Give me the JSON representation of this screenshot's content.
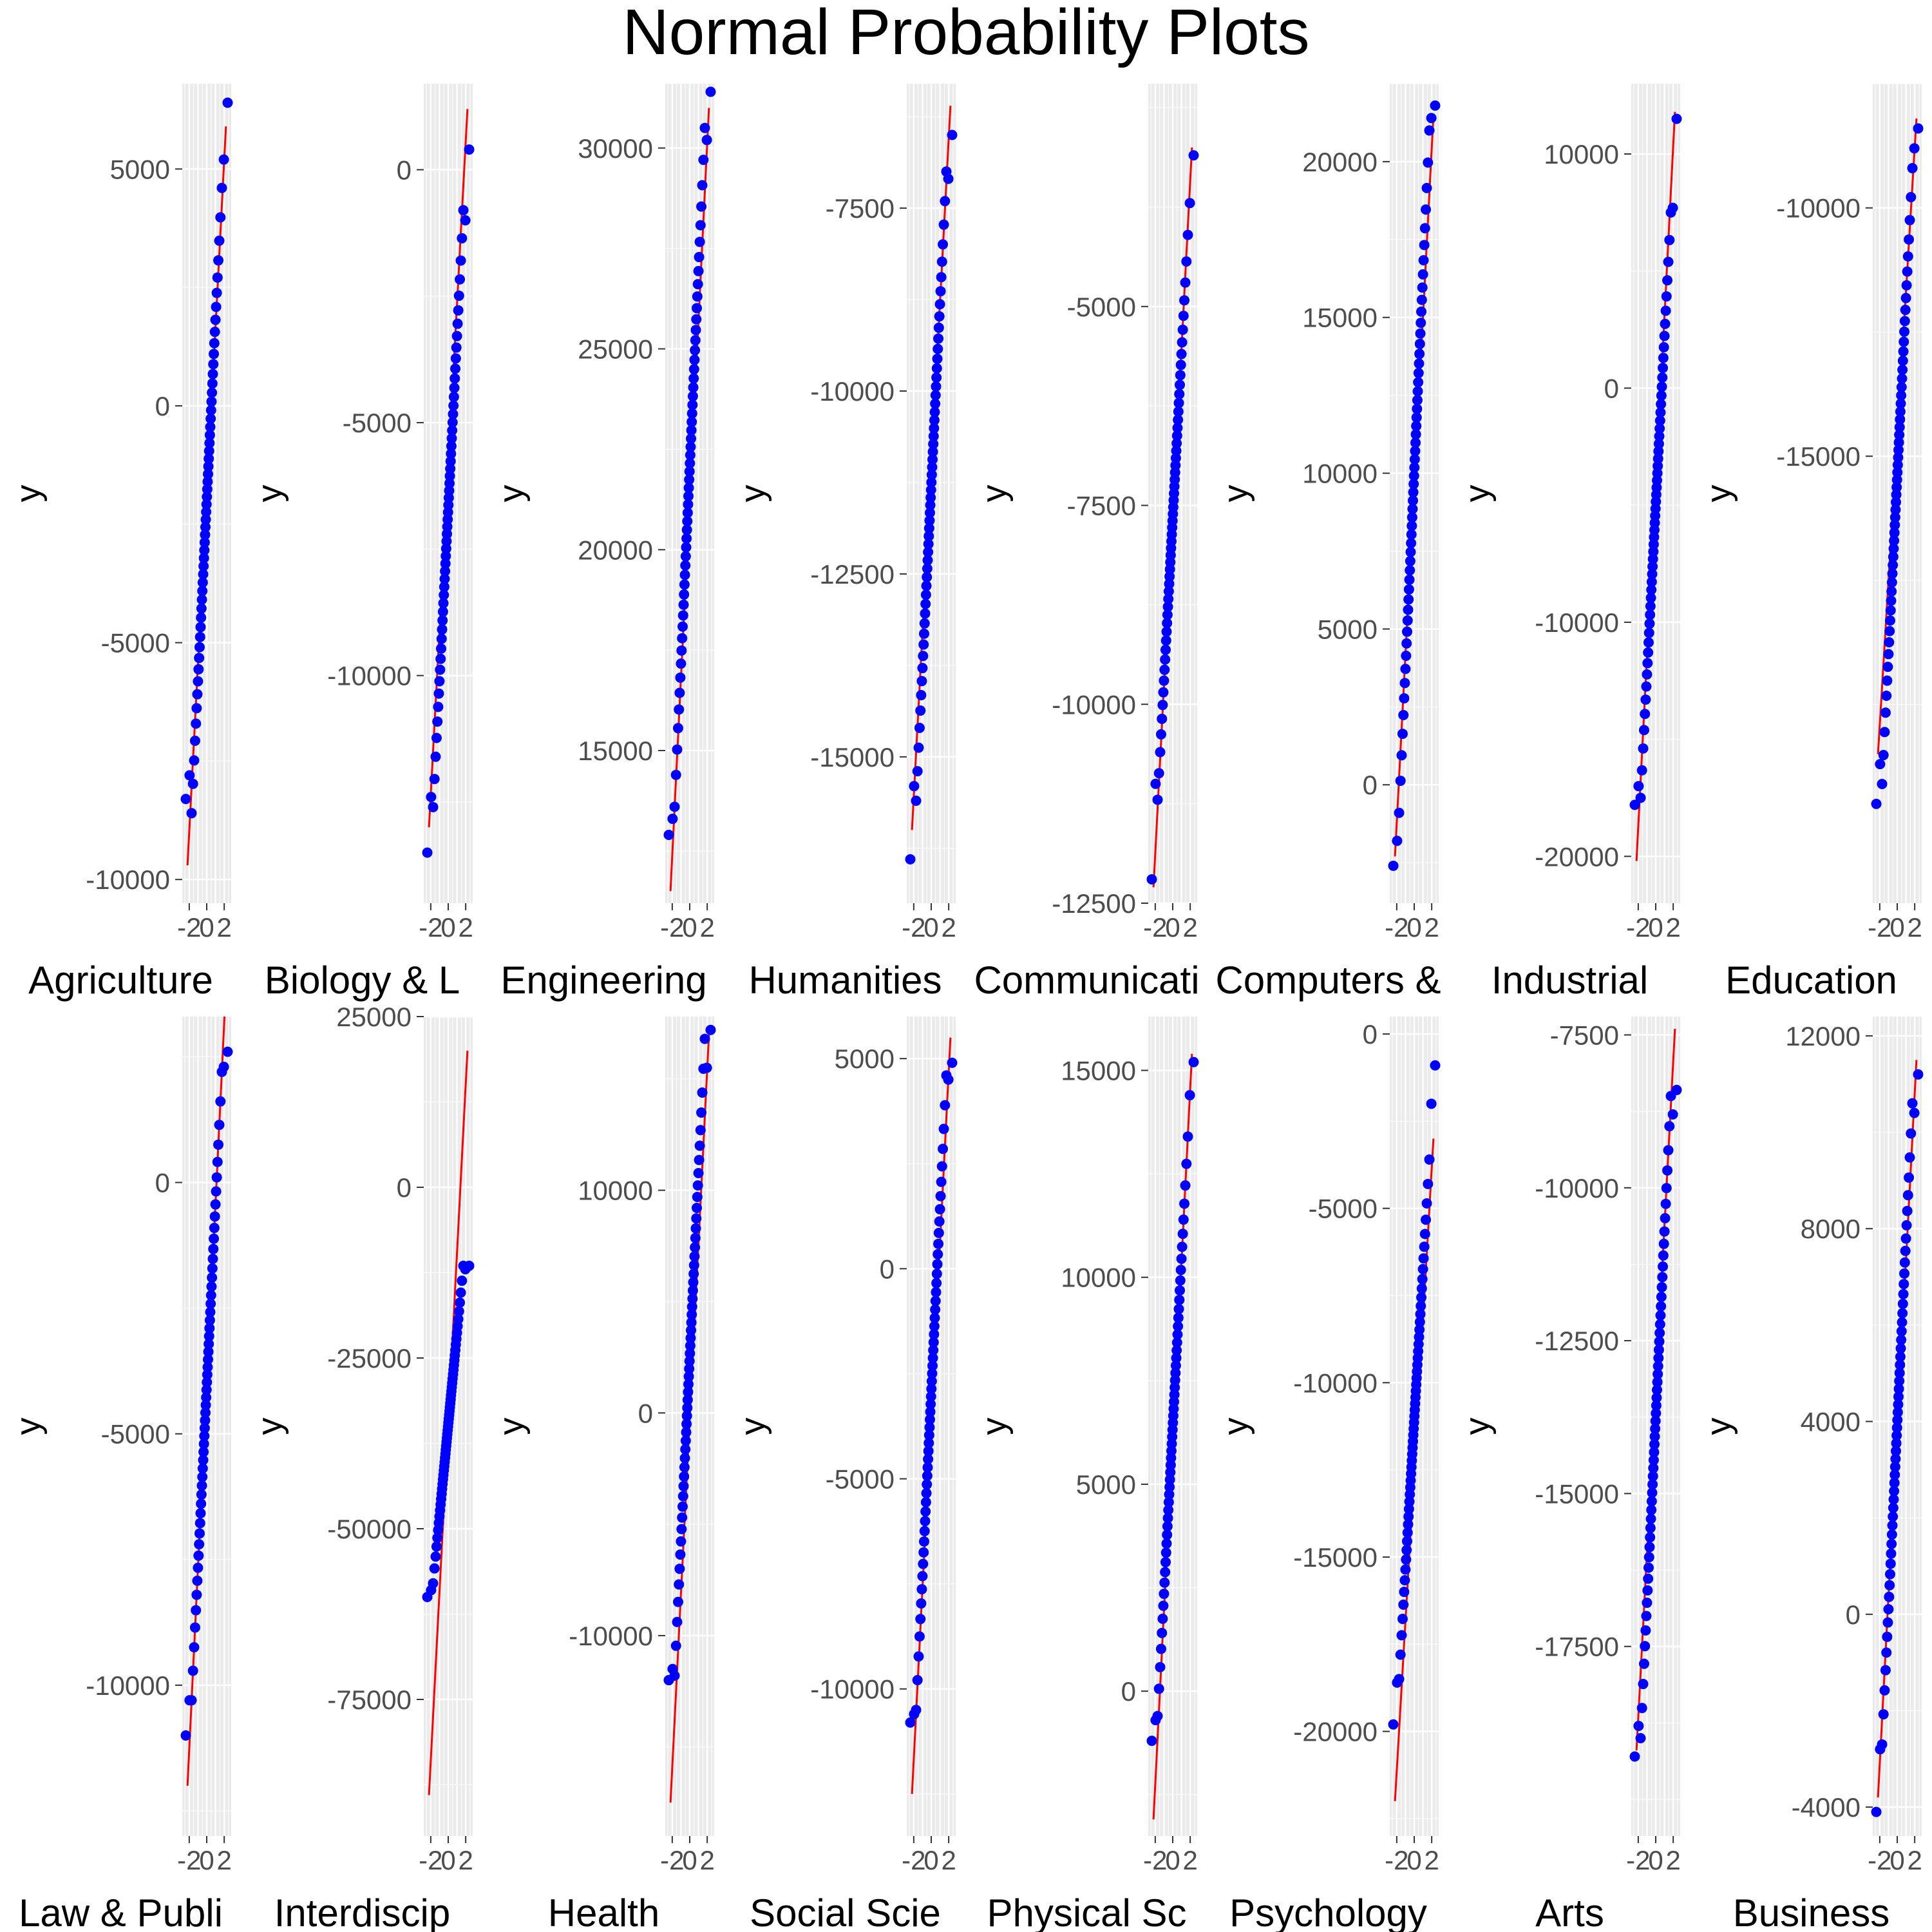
{
  "title": "Normal Probability Plots",
  "colors": {
    "points": "#0000ff",
    "line": "#ff0000",
    "panel_bg": "#ebebeb",
    "grid": "#ffffff",
    "tick": "#333333",
    "text": "#4d4d4d"
  },
  "chart_data": {
    "type": "scatter",
    "subtype": "normal-qq",
    "grid": true,
    "x_ticks": [
      "-2",
      "0",
      "2"
    ],
    "y_axis_label": "y",
    "layout": {
      "rows": 2,
      "cols": 8
    },
    "panels": [
      {
        "label": "Agriculture & Natural Resources",
        "ylim": [
          -10500,
          6800
        ],
        "yticks": [
          5000,
          0,
          -5000,
          -10000
        ],
        "y_at_zmin": -8600,
        "y_at_zmax": 4600,
        "line": [
          -9700,
          5900
        ],
        "outliers": [
          -8300,
          -7800,
          5200,
          6400
        ],
        "n": 60
      },
      {
        "label": "Biology & Life Science",
        "ylim": [
          -14500,
          1700
        ],
        "yticks": [
          0,
          -5000,
          -10000
        ],
        "y_at_zmin": -12600,
        "y_at_zmax": -800,
        "line": [
          -13000,
          1200
        ],
        "outliers": [
          -13500,
          -12400,
          -1000,
          400
        ],
        "n": 60
      },
      {
        "label": "Engineering",
        "ylim": [
          11200,
          31600
        ],
        "yticks": [
          30000,
          25000,
          20000,
          15000
        ],
        "y_at_zmin": 13600,
        "y_at_zmax": 30500,
        "line": [
          11500,
          31000
        ],
        "outliers": [
          12900,
          13300,
          30200,
          31400
        ],
        "n": 60
      },
      {
        "label": "Humanities & Liberal Arts",
        "ylim": [
          -17000,
          -5800
        ],
        "yticks": [
          -7500,
          -10000,
          -12500,
          -15000
        ],
        "y_at_zmin": -15600,
        "y_at_zmax": -7000,
        "line": [
          -16000,
          -6100
        ],
        "outliers": [
          -16400,
          -15400,
          -7100,
          -6500
        ],
        "n": 60
      },
      {
        "label": "Communications & Journalism",
        "ylim": [
          -12500,
          -2200
        ],
        "yticks": [
          -5000,
          -7500,
          -10000,
          -12500
        ],
        "y_at_zmin": -11200,
        "y_at_zmax": -4100,
        "line": [
          -12300,
          -3000
        ],
        "outliers": [
          -12200,
          -11000,
          -3700,
          -3100
        ],
        "n": 60
      },
      {
        "label": "Computers & Mathematics",
        "ylim": [
          -3800,
          22500
        ],
        "yticks": [
          20000,
          15000,
          10000,
          5000,
          0
        ],
        "y_at_zmin": -900,
        "y_at_zmax": 21000,
        "line": [
          -2300,
          21500
        ],
        "outliers": [
          -2600,
          -1800,
          21400,
          21800
        ],
        "n": 60
      },
      {
        "label": "Industrial Arts & Consumer Services",
        "ylim": [
          -22000,
          13000
        ],
        "yticks": [
          10000,
          0,
          -10000,
          -20000
        ],
        "y_at_zmin": -17500,
        "y_at_zmax": 7500,
        "line": [
          -20200,
          11800
        ],
        "outliers": [
          -17800,
          -17000,
          7700,
          11500
        ],
        "n": 60
      },
      {
        "label": "Education",
        "ylim": [
          -24000,
          -7500
        ],
        "yticks": [
          -10000,
          -15000
        ],
        "y_at_zmin": -21600,
        "y_at_zmax": -9200,
        "line": [
          -21000,
          -8200
        ],
        "outliers": [
          -22000,
          -21200,
          -8800,
          -8400
        ],
        "n": 60
      },
      {
        "label": "Law & Public Policy",
        "ylim": [
          -13000,
          3300
        ],
        "yticks": [
          0,
          -5000,
          -10000
        ],
        "y_at_zmin": -10300,
        "y_at_zmax": 2200,
        "line": [
          -12000,
          3900
        ],
        "outliers": [
          -11000,
          -10300,
          2300,
          2600
        ],
        "n": 60
      },
      {
        "label": "Interdisciplinary",
        "ylim": [
          -95000,
          25000
        ],
        "yticks": [
          25000,
          0,
          -25000,
          -50000,
          -75000
        ],
        "y_at_zmin": -58000,
        "y_at_zmax": -11500,
        "line": [
          -89000,
          20000
        ],
        "outliers": [
          -60000,
          -59000,
          -12000,
          -11500
        ],
        "n": 60
      },
      {
        "label": "Health",
        "ylim": [
          -19000,
          17800
        ],
        "yticks": [
          10000,
          0,
          -10000
        ],
        "y_at_zmin": -11800,
        "y_at_zmax": 16800,
        "line": [
          -17500,
          17000
        ],
        "outliers": [
          -12000,
          -11500,
          15500,
          17200
        ],
        "n": 60
      },
      {
        "label": "Social Science",
        "ylim": [
          -13500,
          6000
        ],
        "yticks": [
          5000,
          0,
          -5000,
          -10000
        ],
        "y_at_zmin": -10500,
        "y_at_zmax": 4600,
        "line": [
          -12500,
          5500
        ],
        "outliers": [
          -10800,
          -10600,
          4500,
          4900
        ],
        "n": 60
      },
      {
        "label": "Physical Sciences",
        "ylim": [
          -3500,
          16300
        ],
        "yticks": [
          15000,
          10000,
          5000,
          0
        ],
        "y_at_zmin": -600,
        "y_at_zmax": 13400,
        "line": [
          -3100,
          15400
        ],
        "outliers": [
          -1200,
          -700,
          14400,
          15200
        ],
        "n": 60
      },
      {
        "label": "Psychology & Social Work",
        "ylim": [
          -23000,
          500
        ],
        "yticks": [
          0,
          -5000,
          -10000,
          -15000,
          -20000
        ],
        "y_at_zmin": -18500,
        "y_at_zmax": -3600,
        "line": [
          -22000,
          -3000
        ],
        "outliers": [
          -19800,
          -18600,
          -2000,
          -900
        ],
        "n": 60
      },
      {
        "label": "Arts",
        "ylim": [
          -20600,
          -7200
        ],
        "yticks": [
          -7500,
          -10000,
          -12500,
          -15000,
          -17500
        ],
        "y_at_zmin": -19000,
        "y_at_zmax": -8500,
        "line": [
          -19200,
          -7400
        ],
        "outliers": [
          -19300,
          -18800,
          -8800,
          -8400
        ],
        "n": 60
      },
      {
        "label": "Business",
        "ylim": [
          -4600,
          12400
        ],
        "yticks": [
          12000,
          8000,
          4000,
          0,
          -4000
        ],
        "y_at_zmin": -2700,
        "y_at_zmax": 10600,
        "line": [
          -3800,
          11500
        ],
        "outliers": [
          -4100,
          -2800,
          10400,
          11200
        ],
        "n": 60
      }
    ]
  }
}
